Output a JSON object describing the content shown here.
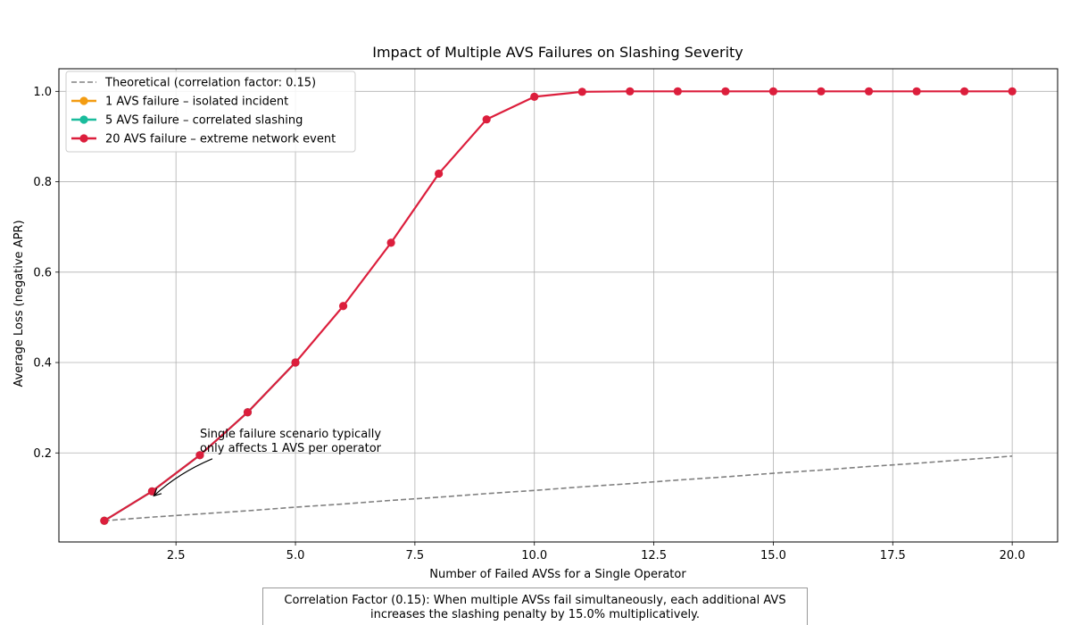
{
  "chart_data": {
    "type": "line",
    "title": "Impact of Multiple AVS Failures on Slashing Severity",
    "xlabel": "Number of Failed AVSs for a Single Operator",
    "ylabel": "Average Loss (negative APR)",
    "xlim": [
      0.05,
      20.95
    ],
    "ylim": [
      0.003,
      1.05
    ],
    "xticks": [
      "2.5",
      "5.0",
      "7.5",
      "10.0",
      "12.5",
      "15.0",
      "17.5",
      "20.0"
    ],
    "xtick_values": [
      2.5,
      5.0,
      7.5,
      10.0,
      12.5,
      15.0,
      17.5,
      20.0
    ],
    "yticks": [
      "0.2",
      "0.4",
      "0.6",
      "0.8",
      "1.0"
    ],
    "ytick_values": [
      0.2,
      0.4,
      0.6,
      0.8,
      1.0
    ],
    "grid": true,
    "legend_position": "top-left",
    "series": [
      {
        "name": "Theoretical (correlation factor: 0.15)",
        "style": "dashed",
        "color": "#808080",
        "marker": false,
        "x": [
          1,
          2,
          3,
          4,
          5,
          6,
          7,
          8,
          9,
          10,
          11,
          12,
          13,
          14,
          15,
          16,
          17,
          18,
          19,
          20
        ],
        "y": [
          0.05,
          0.058,
          0.065,
          0.072,
          0.08,
          0.087,
          0.095,
          0.102,
          0.11,
          0.117,
          0.125,
          0.132,
          0.14,
          0.147,
          0.155,
          0.162,
          0.17,
          0.177,
          0.185,
          0.193
        ]
      },
      {
        "name": "1 AVS failure – isolated incident",
        "style": "solid",
        "color": "#f39c12",
        "marker": true,
        "x": [
          1
        ],
        "y": [
          0.05
        ]
      },
      {
        "name": "5 AVS failure – correlated slashing",
        "style": "solid",
        "color": "#1abc9c",
        "marker": true,
        "x": [
          1,
          2,
          3,
          4,
          5
        ],
        "y": [
          0.05,
          0.115,
          0.195,
          0.29,
          0.4
        ]
      },
      {
        "name": "20 AVS failure – extreme network event",
        "style": "solid",
        "color": "#dc1e3c",
        "marker": true,
        "x": [
          1,
          2,
          3,
          4,
          5,
          6,
          7,
          8,
          9,
          10,
          11,
          12,
          13,
          14,
          15,
          16,
          17,
          18,
          19,
          20
        ],
        "y": [
          0.05,
          0.115,
          0.195,
          0.29,
          0.4,
          0.525,
          0.665,
          0.818,
          0.938,
          0.988,
          0.999,
          1.0,
          1.0,
          1.0,
          1.0,
          1.0,
          1.0,
          1.0,
          1.0,
          1.0
        ]
      }
    ],
    "annotation": {
      "lines": [
        "Single failure scenario typically",
        "only affects 1 AVS per operator"
      ],
      "x": 2,
      "y": 0.115,
      "text_x": 3,
      "text_y": 0.195
    }
  },
  "footnote": {
    "line1": "Correlation Factor (0.15): When multiple AVSs fail simultaneously, each additional AVS",
    "line2": "increases the slashing penalty by 15.0% multiplicatively."
  }
}
